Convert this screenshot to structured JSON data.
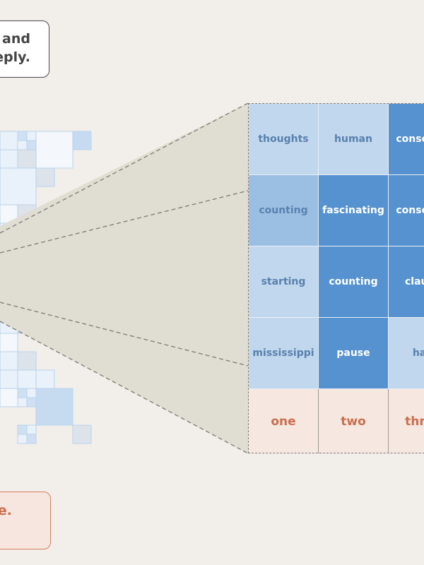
{
  "callouts": {
    "top": {
      "line1": "and",
      "line2": "eply."
    },
    "bottom": {
      "line1": "e."
    }
  },
  "colors": {
    "background": "#f2efea",
    "cell_light": "#c1d7ee",
    "cell_mid": "#9bbfe3",
    "cell_dark": "#5592cf",
    "counting_row": "#f6e7e0",
    "counting_text": "#c96f4e",
    "zoom_fill": "#e0ddd2",
    "dashed_line": "#7d7a76"
  },
  "grid": {
    "rows": [
      [
        {
          "word": "thoughts",
          "shade": "light"
        },
        {
          "word": "human",
          "shade": "light"
        },
        {
          "word": "conscious",
          "shade": "dark"
        }
      ],
      [
        {
          "word": "counting",
          "shade": "mid"
        },
        {
          "word": "fascinating",
          "shade": "dark"
        },
        {
          "word": "conscious",
          "shade": "dark"
        }
      ],
      [
        {
          "word": "starting",
          "shade": "light"
        },
        {
          "word": "counting",
          "shade": "dark"
        },
        {
          "word": "claude",
          "shade": "dark"
        }
      ],
      [
        {
          "word": "mississippi",
          "shade": "light"
        },
        {
          "word": "pause",
          "shade": "dark"
        },
        {
          "word": "half",
          "shade": "light"
        }
      ]
    ],
    "count_row": [
      "one",
      "two",
      "three"
    ]
  },
  "overview_map": {
    "cells": [
      {
        "shade": "pale"
      },
      {
        "shade": "pale"
      },
      {
        "shade": "faint"
      },
      {
        "shade": "blue"
      },
      {
        "shade": "pale"
      },
      {
        "shade": "grey"
      },
      {
        "shade": "pale"
      },
      {
        "shade": "grey"
      },
      {
        "shade": "faint"
      },
      {
        "shade": "grey"
      },
      {
        "shade": "pale"
      },
      {
        "shade": "grey"
      },
      {
        "shade": "pale"
      },
      {
        "shade": "blue"
      },
      {
        "shade": "faint"
      },
      {
        "shade": "pale"
      },
      {
        "shade": "grey"
      },
      {
        "shade": "pale"
      }
    ]
  }
}
